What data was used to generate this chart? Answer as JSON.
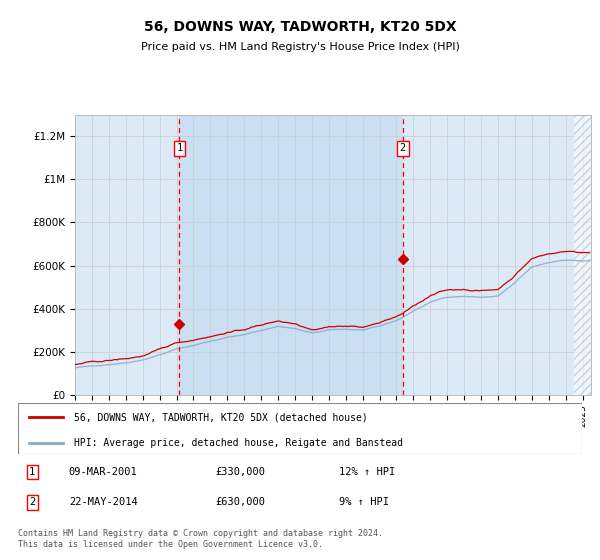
{
  "title": "56, DOWNS WAY, TADWORTH, KT20 5DX",
  "subtitle": "Price paid vs. HM Land Registry's House Price Index (HPI)",
  "ylabel_ticks": [
    "£0",
    "£200K",
    "£400K",
    "£600K",
    "£800K",
    "£1M",
    "£1.2M"
  ],
  "ytick_values": [
    0,
    200000,
    400000,
    600000,
    800000,
    1000000,
    1200000
  ],
  "ylim": [
    0,
    1300000
  ],
  "xlim_start": 1995.0,
  "xlim_end": 2025.5,
  "bg_color": "#dce9f7",
  "shade_between_color": "#c5dbf0",
  "line1_color": "#cc0000",
  "line2_color": "#88aacc",
  "marker1_x": 2001.17,
  "marker2_x": 2014.38,
  "sale1_y": 330000,
  "sale2_y": 630000,
  "legend_label1": "56, DOWNS WAY, TADWORTH, KT20 5DX (detached house)",
  "legend_label2": "HPI: Average price, detached house, Reigate and Banstead",
  "footnote": "Contains HM Land Registry data © Crown copyright and database right 2024.\nThis data is licensed under the Open Government Licence v3.0.",
  "table": [
    {
      "num": "1",
      "date": "09-MAR-2001",
      "price": "£330,000",
      "hpi": "12% ↑ HPI"
    },
    {
      "num": "2",
      "date": "22-MAY-2014",
      "price": "£630,000",
      "hpi": "9% ↑ HPI"
    }
  ]
}
